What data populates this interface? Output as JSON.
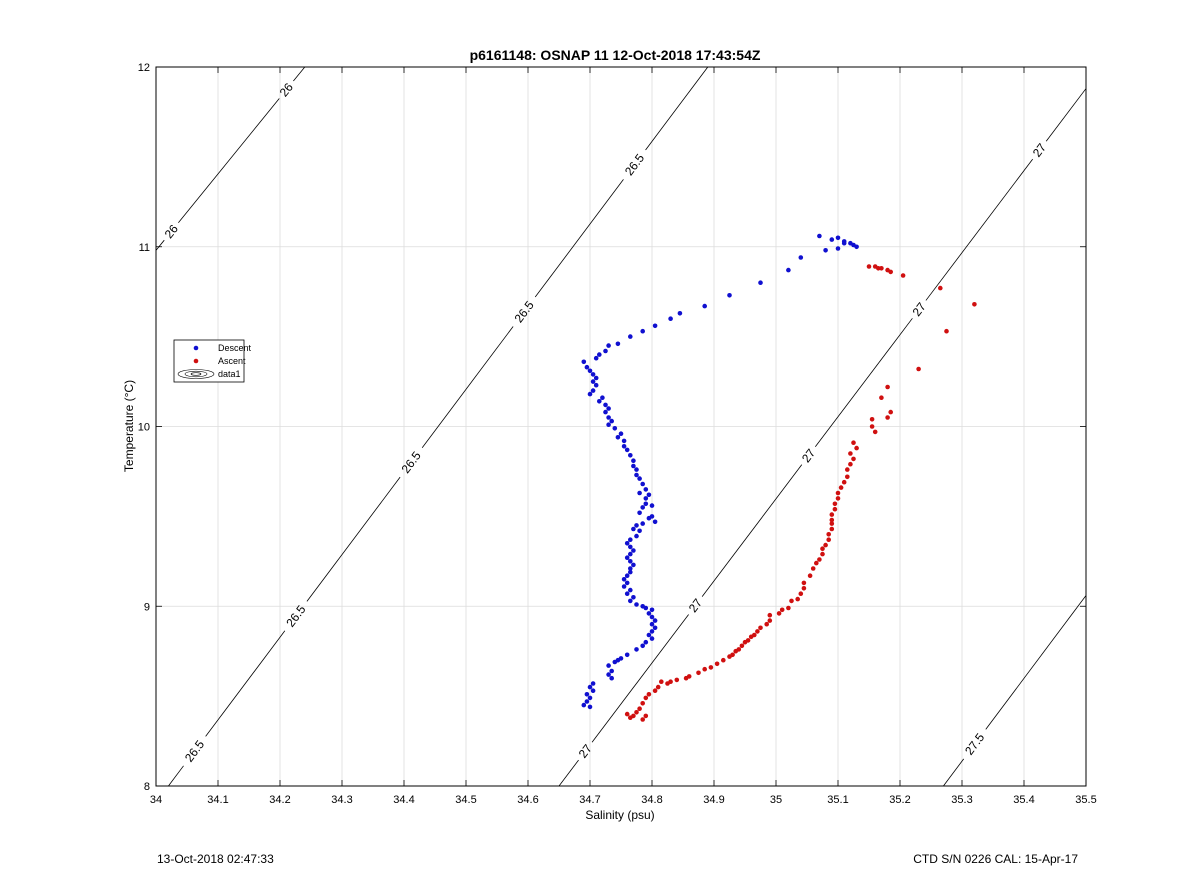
{
  "colors": {
    "descent": "#1010d0",
    "ascent": "#d01010",
    "grid": "#dcdcdc",
    "axis": "#000000",
    "contour": "#000000"
  },
  "footer": {
    "left": "13-Oct-2018 02:47:33",
    "right": "CTD S/N 0226  CAL: 15-Apr-17"
  },
  "chart_data": {
    "type": "scatter",
    "title": "p6161148: OSNAP 11 12-Oct-2018 17:43:54Z",
    "xlabel": "Salinity (psu)",
    "ylabel": "Temperature (°C)",
    "xlim": [
      34,
      35.5
    ],
    "ylim": [
      8,
      12
    ],
    "xticks": [
      "34",
      "34.1",
      "34.2",
      "34.3",
      "34.4",
      "34.5",
      "34.6",
      "34.7",
      "34.8",
      "34.9",
      "35",
      "35.1",
      "35.2",
      "35.3",
      "35.4",
      "35.5"
    ],
    "yticks": [
      "8",
      "9",
      "10",
      "11",
      "12"
    ],
    "grid": true,
    "legend": {
      "placement": "left",
      "entries": [
        "Descent",
        "Ascent",
        "data1"
      ]
    },
    "contours": [
      {
        "label": "26",
        "points": [
          [
            34.0,
            10.98
          ],
          [
            34.24,
            12.0
          ]
        ],
        "label_at": [
          [
            34.215,
            11.86
          ],
          [
            34.03,
            11.07
          ]
        ]
      },
      {
        "label": "26.5",
        "points": [
          [
            34.02,
            8.0
          ],
          [
            34.89,
            12.0
          ]
        ],
        "label_at": [
          [
            34.06,
            8.2
          ],
          [
            34.22,
            8.96
          ],
          [
            34.4,
            9.83
          ],
          [
            34.57,
            10.7
          ],
          [
            34.755,
            11.5
          ]
        ]
      },
      {
        "label": "27",
        "points": [
          [
            34.65,
            8.0
          ],
          [
            35.5,
            11.88
          ]
        ],
        "label_at": [
          [
            34.69,
            8.2
          ],
          [
            34.86,
            9.03
          ],
          [
            35.04,
            9.87
          ],
          [
            35.22,
            10.68
          ],
          [
            35.42,
            11.55
          ]
        ]
      },
      {
        "label": "27.5",
        "points": [
          [
            35.27,
            8.0
          ],
          [
            35.5,
            9.06
          ]
        ],
        "label_at": [
          [
            35.31,
            8.26
          ]
        ]
      }
    ],
    "series": [
      {
        "name": "Descent",
        "points": [
          [
            35.07,
            11.06
          ],
          [
            35.09,
            11.04
          ],
          [
            35.1,
            11.05
          ],
          [
            35.11,
            11.03
          ],
          [
            35.12,
            11.02
          ],
          [
            35.125,
            11.01
          ],
          [
            35.13,
            11.0
          ],
          [
            35.1,
            10.99
          ],
          [
            35.11,
            11.02
          ],
          [
            35.08,
            10.98
          ],
          [
            35.04,
            10.94
          ],
          [
            35.02,
            10.87
          ],
          [
            34.975,
            10.8
          ],
          [
            34.925,
            10.73
          ],
          [
            34.885,
            10.67
          ],
          [
            34.845,
            10.63
          ],
          [
            34.83,
            10.6
          ],
          [
            34.805,
            10.56
          ],
          [
            34.785,
            10.53
          ],
          [
            34.765,
            10.5
          ],
          [
            34.745,
            10.46
          ],
          [
            34.73,
            10.45
          ],
          [
            34.725,
            10.42
          ],
          [
            34.715,
            10.4
          ],
          [
            34.71,
            10.38
          ],
          [
            34.69,
            10.36
          ],
          [
            34.695,
            10.33
          ],
          [
            34.7,
            10.31
          ],
          [
            34.705,
            10.29
          ],
          [
            34.71,
            10.27
          ],
          [
            34.705,
            10.25
          ],
          [
            34.71,
            10.23
          ],
          [
            34.705,
            10.2
          ],
          [
            34.7,
            10.18
          ],
          [
            34.72,
            10.16
          ],
          [
            34.715,
            10.14
          ],
          [
            34.725,
            10.12
          ],
          [
            34.73,
            10.1
          ],
          [
            34.725,
            10.08
          ],
          [
            34.73,
            10.05
          ],
          [
            34.735,
            10.03
          ],
          [
            34.73,
            10.01
          ],
          [
            34.74,
            9.99
          ],
          [
            34.75,
            9.96
          ],
          [
            34.745,
            9.94
          ],
          [
            34.755,
            9.92
          ],
          [
            34.755,
            9.89
          ],
          [
            34.76,
            9.87
          ],
          [
            34.765,
            9.84
          ],
          [
            34.77,
            9.81
          ],
          [
            34.77,
            9.78
          ],
          [
            34.775,
            9.76
          ],
          [
            34.775,
            9.73
          ],
          [
            34.78,
            9.71
          ],
          [
            34.785,
            9.68
          ],
          [
            34.79,
            9.65
          ],
          [
            34.78,
            9.63
          ],
          [
            34.795,
            9.62
          ],
          [
            34.79,
            9.6
          ],
          [
            34.79,
            9.57
          ],
          [
            34.8,
            9.56
          ],
          [
            34.785,
            9.55
          ],
          [
            34.78,
            9.52
          ],
          [
            34.8,
            9.5
          ],
          [
            34.795,
            9.49
          ],
          [
            34.805,
            9.47
          ],
          [
            34.785,
            9.46
          ],
          [
            34.775,
            9.45
          ],
          [
            34.77,
            9.43
          ],
          [
            34.78,
            9.42
          ],
          [
            34.775,
            9.39
          ],
          [
            34.765,
            9.37
          ],
          [
            34.76,
            9.35
          ],
          [
            34.765,
            9.33
          ],
          [
            34.77,
            9.31
          ],
          [
            34.765,
            9.29
          ],
          [
            34.76,
            9.27
          ],
          [
            34.765,
            9.25
          ],
          [
            34.77,
            9.23
          ],
          [
            34.765,
            9.21
          ],
          [
            34.765,
            9.19
          ],
          [
            34.76,
            9.17
          ],
          [
            34.755,
            9.15
          ],
          [
            34.76,
            9.13
          ],
          [
            34.755,
            9.11
          ],
          [
            34.765,
            9.09
          ],
          [
            34.76,
            9.07
          ],
          [
            34.77,
            9.05
          ],
          [
            34.765,
            9.03
          ],
          [
            34.775,
            9.01
          ],
          [
            34.785,
            9.0
          ],
          [
            34.79,
            8.99
          ],
          [
            34.8,
            8.98
          ],
          [
            34.795,
            8.96
          ],
          [
            34.8,
            8.94
          ],
          [
            34.805,
            8.92
          ],
          [
            34.8,
            8.9
          ],
          [
            34.805,
            8.88
          ],
          [
            34.8,
            8.86
          ],
          [
            34.795,
            8.84
          ],
          [
            34.8,
            8.82
          ],
          [
            34.79,
            8.8
          ],
          [
            34.785,
            8.78
          ],
          [
            34.775,
            8.76
          ],
          [
            34.76,
            8.73
          ],
          [
            34.75,
            8.71
          ],
          [
            34.745,
            8.7
          ],
          [
            34.74,
            8.69
          ],
          [
            34.73,
            8.67
          ],
          [
            34.735,
            8.64
          ],
          [
            34.73,
            8.62
          ],
          [
            34.735,
            8.6
          ],
          [
            34.705,
            8.57
          ],
          [
            34.7,
            8.55
          ],
          [
            34.705,
            8.53
          ],
          [
            34.695,
            8.51
          ],
          [
            34.7,
            8.49
          ],
          [
            34.695,
            8.47
          ],
          [
            34.69,
            8.45
          ],
          [
            34.7,
            8.44
          ]
        ]
      },
      {
        "name": "Ascent",
        "points": [
          [
            35.15,
            10.89
          ],
          [
            35.16,
            10.89
          ],
          [
            35.165,
            10.88
          ],
          [
            35.17,
            10.88
          ],
          [
            35.18,
            10.87
          ],
          [
            35.185,
            10.86
          ],
          [
            35.205,
            10.84
          ],
          [
            35.265,
            10.77
          ],
          [
            35.32,
            10.68
          ],
          [
            35.275,
            10.53
          ],
          [
            35.23,
            10.32
          ],
          [
            35.18,
            10.22
          ],
          [
            35.17,
            10.16
          ],
          [
            35.185,
            10.08
          ],
          [
            35.18,
            10.05
          ],
          [
            35.155,
            10.04
          ],
          [
            35.155,
            10.0
          ],
          [
            35.16,
            9.97
          ],
          [
            35.125,
            9.91
          ],
          [
            35.13,
            9.88
          ],
          [
            35.12,
            9.85
          ],
          [
            35.125,
            9.82
          ],
          [
            35.12,
            9.79
          ],
          [
            35.115,
            9.76
          ],
          [
            35.115,
            9.72
          ],
          [
            35.11,
            9.69
          ],
          [
            35.105,
            9.66
          ],
          [
            35.1,
            9.63
          ],
          [
            35.1,
            9.6
          ],
          [
            35.095,
            9.57
          ],
          [
            35.095,
            9.54
          ],
          [
            35.09,
            9.51
          ],
          [
            35.09,
            9.48
          ],
          [
            35.09,
            9.46
          ],
          [
            35.09,
            9.43
          ],
          [
            35.085,
            9.4
          ],
          [
            35.085,
            9.37
          ],
          [
            35.08,
            9.34
          ],
          [
            35.075,
            9.32
          ],
          [
            35.075,
            9.29
          ],
          [
            35.07,
            9.26
          ],
          [
            35.065,
            9.24
          ],
          [
            35.06,
            9.21
          ],
          [
            35.055,
            9.17
          ],
          [
            35.045,
            9.13
          ],
          [
            35.045,
            9.1
          ],
          [
            35.04,
            9.07
          ],
          [
            35.035,
            9.04
          ],
          [
            35.025,
            9.03
          ],
          [
            35.02,
            8.99
          ],
          [
            35.01,
            8.98
          ],
          [
            35.005,
            8.96
          ],
          [
            34.99,
            8.95
          ],
          [
            34.99,
            8.92
          ],
          [
            34.985,
            8.9
          ],
          [
            34.975,
            8.88
          ],
          [
            34.97,
            8.86
          ],
          [
            34.965,
            8.84
          ],
          [
            34.96,
            8.83
          ],
          [
            34.955,
            8.81
          ],
          [
            34.95,
            8.8
          ],
          [
            34.945,
            8.78
          ],
          [
            34.94,
            8.76
          ],
          [
            34.935,
            8.75
          ],
          [
            34.93,
            8.73
          ],
          [
            34.925,
            8.72
          ],
          [
            34.915,
            8.7
          ],
          [
            34.905,
            8.68
          ],
          [
            34.895,
            8.66
          ],
          [
            34.885,
            8.65
          ],
          [
            34.875,
            8.63
          ],
          [
            34.86,
            8.61
          ],
          [
            34.855,
            8.6
          ],
          [
            34.84,
            8.59
          ],
          [
            34.83,
            8.58
          ],
          [
            34.825,
            8.57
          ],
          [
            34.815,
            8.58
          ],
          [
            34.81,
            8.55
          ],
          [
            34.805,
            8.53
          ],
          [
            34.795,
            8.51
          ],
          [
            34.79,
            8.49
          ],
          [
            34.785,
            8.46
          ],
          [
            34.78,
            8.43
          ],
          [
            34.775,
            8.41
          ],
          [
            34.77,
            8.39
          ],
          [
            34.76,
            8.4
          ],
          [
            34.765,
            8.38
          ],
          [
            34.785,
            8.37
          ],
          [
            34.79,
            8.39
          ]
        ]
      }
    ]
  }
}
